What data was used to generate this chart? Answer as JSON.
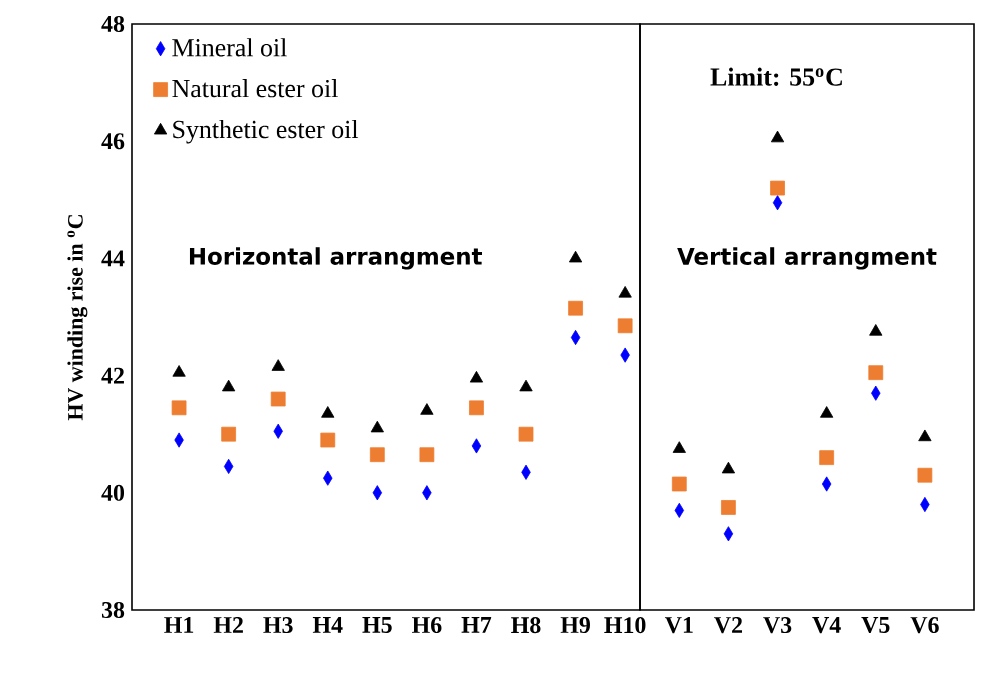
{
  "chart_data": [
    {
      "type": "scatter",
      "ylabel": "HV winding rise in $^{o}$C",
      "categories": [
        "H1",
        "H2",
        "H3",
        "H4",
        "H5",
        "H6",
        "H7",
        "H8",
        "H9",
        "H10"
      ],
      "ylim": [
        38,
        48
      ],
      "yticks": [
        38,
        40,
        42,
        44,
        46,
        48
      ],
      "legend": "top left",
      "series": [
        {
          "name": "Mineral oil",
          "color": "#0000ff",
          "marker": "diamond",
          "values": [
            40.9,
            40.45,
            41.05,
            40.25,
            40.0,
            40.0,
            40.8,
            40.35,
            42.65,
            42.35
          ]
        },
        {
          "name": "Natural ester oil",
          "color": "#ed7d31",
          "marker": "square",
          "values": [
            41.45,
            41.0,
            41.6,
            40.9,
            40.65,
            40.65,
            41.45,
            41.0,
            43.15,
            42.85
          ]
        },
        {
          "name": "Synthetic ester oil",
          "color": "#000000",
          "marker": "triangle",
          "values": [
            42.05,
            41.8,
            42.15,
            41.35,
            41.1,
            41.4,
            41.95,
            41.8,
            44.0,
            43.4
          ]
        }
      ],
      "annotations": [
        "Horizontal arrangment"
      ]
    },
    {
      "type": "scatter",
      "categories": [
        "V1",
        "V2",
        "V3",
        "V4",
        "V5",
        "V6"
      ],
      "ylim": [
        38,
        48
      ],
      "yticks": [
        38,
        40,
        42,
        44,
        46,
        48
      ],
      "tick_labels": "x",
      "series": [
        {
          "color": "#0000ff",
          "marker": "diamond",
          "values": [
            39.7,
            39.3,
            44.95,
            40.15,
            41.7,
            39.8
          ]
        },
        {
          "color": "#ed7d31",
          "marker": "square",
          "values": [
            40.15,
            39.75,
            45.2,
            40.6,
            42.05,
            40.3
          ]
        },
        {
          "color": "#000000",
          "marker": "triangle",
          "values": [
            40.75,
            40.4,
            46.05,
            41.35,
            42.75,
            40.95
          ]
        }
      ],
      "annotations": [
        "Limit: 55$^{o}$C",
        "Vertical arrangment"
      ]
    }
  ]
}
